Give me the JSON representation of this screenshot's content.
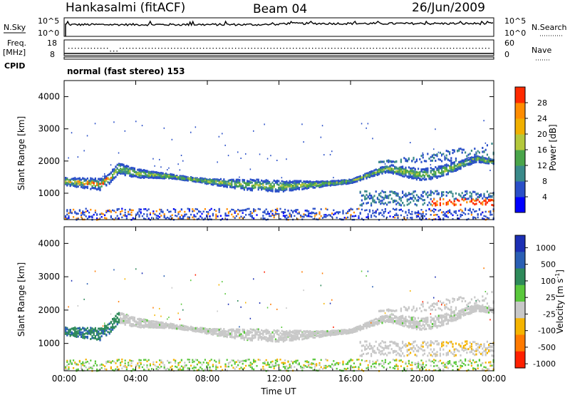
{
  "header": {
    "station": "Hankasalmi (fitACF)",
    "beam": "Beam 04",
    "date": "26/Jun/2009"
  },
  "strips": {
    "nsky_label": "N.Sky",
    "nsky_ticks": [
      "10^5",
      "10^0"
    ],
    "nsearch_label": "N.Search",
    "nsearch_ticks": [
      "10^5",
      "10^0"
    ],
    "freq_label_1": "Freq.",
    "freq_label_2": "[MHz]",
    "freq_ticks": [
      "18",
      "8"
    ],
    "nave_label": "Nave",
    "nave_ticks": [
      "60",
      "0"
    ],
    "cpid_label": "CPID",
    "cpid_text": "normal (fast stereo) 153"
  },
  "chart_data": [
    {
      "type": "heatmap",
      "panel": "power",
      "title": "",
      "xlabel": "Time UT",
      "ylabel": "Slant Range [km]",
      "x_ticks": [
        "00:00",
        "04:00",
        "08:00",
        "12:00",
        "16:00",
        "20:00",
        "00:00"
      ],
      "xlim_hours": [
        0,
        24
      ],
      "y_ticks": [
        "1000",
        "2000",
        "3000",
        "4000"
      ],
      "ylim": [
        180,
        4500
      ],
      "colorbar": {
        "label": "Power [dB]",
        "ticks": [
          "4",
          "8",
          "12",
          "16",
          "20",
          "24",
          "28"
        ],
        "range": [
          0,
          30
        ],
        "colors": [
          "#0000ff",
          "#2a4fc8",
          "#3a8a8a",
          "#4aa54a",
          "#b4c83c",
          "#f0b000",
          "#ff8c00",
          "#ff2a00"
        ]
      },
      "bands": [
        {
          "x": [
            0.0,
            1.0,
            2.0,
            2.5,
            3.0,
            4.0,
            6.0,
            8.0,
            10.0,
            12.0,
            14.0,
            16.0,
            17.0,
            18.0,
            19.0,
            20.0,
            21.0,
            22.0,
            23.0,
            24.0
          ],
          "y": [
            1400,
            1350,
            1300,
            1500,
            1800,
            1650,
            1550,
            1400,
            1300,
            1250,
            1300,
            1400,
            1600,
            1800,
            1700,
            1600,
            1700,
            1900,
            2100,
            2000
          ],
          "power_db": 18
        }
      ]
    },
    {
      "type": "heatmap",
      "panel": "velocity",
      "title": "",
      "xlabel": "Time UT",
      "ylabel": "Slant Range [km]",
      "x_ticks": [
        "00:00",
        "04:00",
        "08:00",
        "12:00",
        "16:00",
        "20:00",
        "00:00"
      ],
      "xlim_hours": [
        0,
        24
      ],
      "y_ticks": [
        "1000",
        "2000",
        "3000",
        "4000"
      ],
      "ylim": [
        180,
        4500
      ],
      "colorbar": {
        "label": "Velocity [m s^-1]",
        "ticks": [
          "1000",
          "500",
          "100",
          "25",
          "-25",
          "-100",
          "-500",
          "-1000"
        ],
        "colors": [
          "#1c2fb4",
          "#2a5fb4",
          "#2e8a5a",
          "#5ac83c",
          "#c8c8c8",
          "#f5b400",
          "#ff7a00",
          "#ff2000"
        ]
      },
      "dominant_value": "ground scatter (grey)"
    }
  ]
}
